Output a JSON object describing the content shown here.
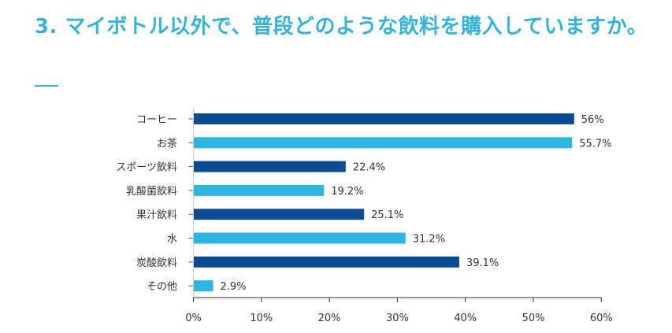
{
  "page": {
    "title": "3. マイボトル以外で、普段どのような飲料を購入していますか。"
  },
  "colors": {
    "title": "#35b3dd",
    "dark_bar": "#0b4c94",
    "light_bar": "#2cb6e2",
    "axis": "#333333",
    "text": "#333333"
  },
  "chart_data": {
    "type": "bar",
    "orientation": "horizontal",
    "categories": [
      "コーヒー",
      "お茶",
      "スポーツ飲料",
      "乳酸菌飲料",
      "果汁飲料",
      "水",
      "炭酸飲料",
      "その他"
    ],
    "values": [
      56,
      55.7,
      22.4,
      19.2,
      25.1,
      31.2,
      39.1,
      2.9
    ],
    "value_labels": [
      "56%",
      "55.7%",
      "22.4%",
      "19.2%",
      "25.1%",
      "31.2%",
      "39.1%",
      "2.9%"
    ],
    "bar_colors": [
      "#0b4c94",
      "#2cb6e2",
      "#0b4c94",
      "#2cb6e2",
      "#0b4c94",
      "#2cb6e2",
      "#0b4c94",
      "#2cb6e2"
    ],
    "x_ticks": [
      "0%",
      "10%",
      "20%",
      "30%",
      "40%",
      "50%",
      "60%"
    ],
    "xlim": [
      0,
      60
    ],
    "grid": false
  }
}
